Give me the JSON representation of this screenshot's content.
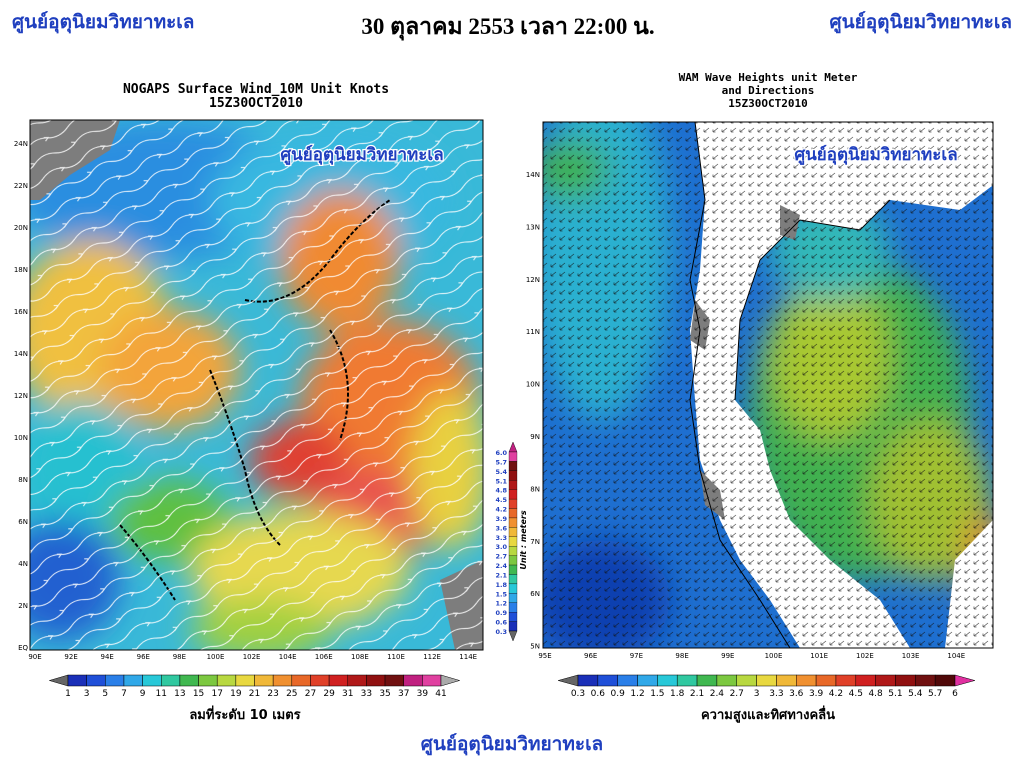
{
  "header": {
    "left": "ศูนย์อุตุนิยมวิทยาทะเล",
    "center": "30 ตุลาคม 2553 เวลา 22:00 น.",
    "right": "ศูนย์อุตุนิยมวิทยาทะเล"
  },
  "wind_map": {
    "title": [
      "NOGAPS Surface Wind_10M Unit Knots",
      "15Z30OCT2010"
    ],
    "watermark": "ศูนย์อุตุนิยมวิทยาทะเล",
    "lat_labels": [
      "24N",
      "22N",
      "20N",
      "18N",
      "16N",
      "14N",
      "12N",
      "10N",
      "8N",
      "6N",
      "4N",
      "2N",
      "EQ"
    ],
    "lon_labels": [
      "90E",
      "92E",
      "94E",
      "96E",
      "98E",
      "100E",
      "102E",
      "104E",
      "106E",
      "108E",
      "110E",
      "112E",
      "114E"
    ],
    "colorbar_labels": [
      "1",
      "3",
      "5",
      "7",
      "9",
      "11",
      "13",
      "15",
      "17",
      "19",
      "21",
      "23",
      "25",
      "27",
      "29",
      "31",
      "33",
      "35",
      "37",
      "39",
      "41"
    ],
    "caption": "ลมที่ระดับ 10 เมตร"
  },
  "scale_bar": {
    "labels": [
      "6.0",
      "5.7",
      "5.4",
      "5.1",
      "4.8",
      "4.5",
      "4.2",
      "3.9",
      "3.6",
      "3.3",
      "3.0",
      "2.7",
      "2.4",
      "2.1",
      "1.8",
      "1.5",
      "1.2",
      "0.9",
      "0.6",
      "0.3"
    ],
    "unit": "Unit : meters"
  },
  "wave_map": {
    "title": [
      "WAM Wave Heights unit Meter",
      "and Directions",
      "15Z30OCT2010"
    ],
    "watermark": "ศูนย์อุตุนิยมวิทยาทะเล",
    "lat_labels": [
      "14N",
      "13N",
      "12N",
      "11N",
      "10N",
      "9N",
      "8N",
      "7N",
      "6N",
      "5N"
    ],
    "lon_labels": [
      "95E",
      "96E",
      "97E",
      "98E",
      "99E",
      "100E",
      "101E",
      "102E",
      "103E",
      "104E"
    ],
    "colorbar_labels": [
      "0.3",
      "0.6",
      "0.9",
      "1.2",
      "1.5",
      "1.8",
      "2.1",
      "2.4",
      "2.7",
      "3",
      "3.3",
      "3.6",
      "3.9",
      "4.2",
      "4.5",
      "4.8",
      "5.1",
      "5.4",
      "5.7",
      "6"
    ],
    "caption": "ความสูงและทิศทางคลื่น"
  },
  "footer": "ศูนย์อุตุนิยมวิทยาทะเล"
}
